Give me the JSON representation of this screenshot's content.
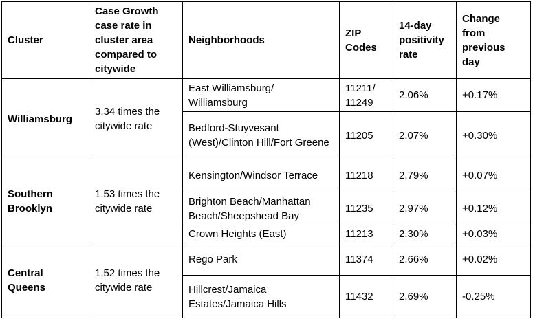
{
  "headers": {
    "cluster": "Cluster",
    "growth": "Case Growth case rate in cluster area compared to citywide",
    "neighborhoods": "Neighborhoods",
    "zip": "ZIP Codes",
    "positivity": "14-day positivity rate",
    "change": "Change from previous day"
  },
  "clusters": [
    {
      "name": "Williamsburg",
      "growth": "3.34 times the citywide rate",
      "rows": [
        {
          "neighborhood": "East Williamsburg/ Williamsburg",
          "zip": "11211/ 11249",
          "positivity": "2.06%",
          "change": "+0.17%"
        },
        {
          "neighborhood": "Bedford-Stuyvesant (West)/Clinton Hill/Fort Greene",
          "zip": "11205",
          "positivity": "2.07%",
          "change": "+0.30%"
        }
      ]
    },
    {
      "name": "Southern Brooklyn",
      "growth": "1.53 times the citywide rate",
      "rows": [
        {
          "neighborhood": "Kensington/Windsor Terrace",
          "zip": "11218",
          "positivity": "2.79%",
          "change": "+0.07%"
        },
        {
          "neighborhood": "Brighton Beach/Manhattan Beach/Sheepshead Bay",
          "zip": "11235",
          "positivity": "2.97%",
          "change": "+0.12%"
        },
        {
          "neighborhood": "Crown Heights (East)",
          "zip": "11213",
          "positivity": "2.30%",
          "change": "+0.03%"
        }
      ]
    },
    {
      "name": "Central Queens",
      "growth": "1.52 times the citywide rate",
      "rows": [
        {
          "neighborhood": "Rego Park",
          "zip": "11374",
          "positivity": "2.66%",
          "change": "+0.02%"
        },
        {
          "neighborhood": "Hillcrest/Jamaica Estates/Jamaica Hills",
          "zip": "11432",
          "positivity": "2.69%",
          "change": "-0.25%"
        }
      ]
    }
  ]
}
